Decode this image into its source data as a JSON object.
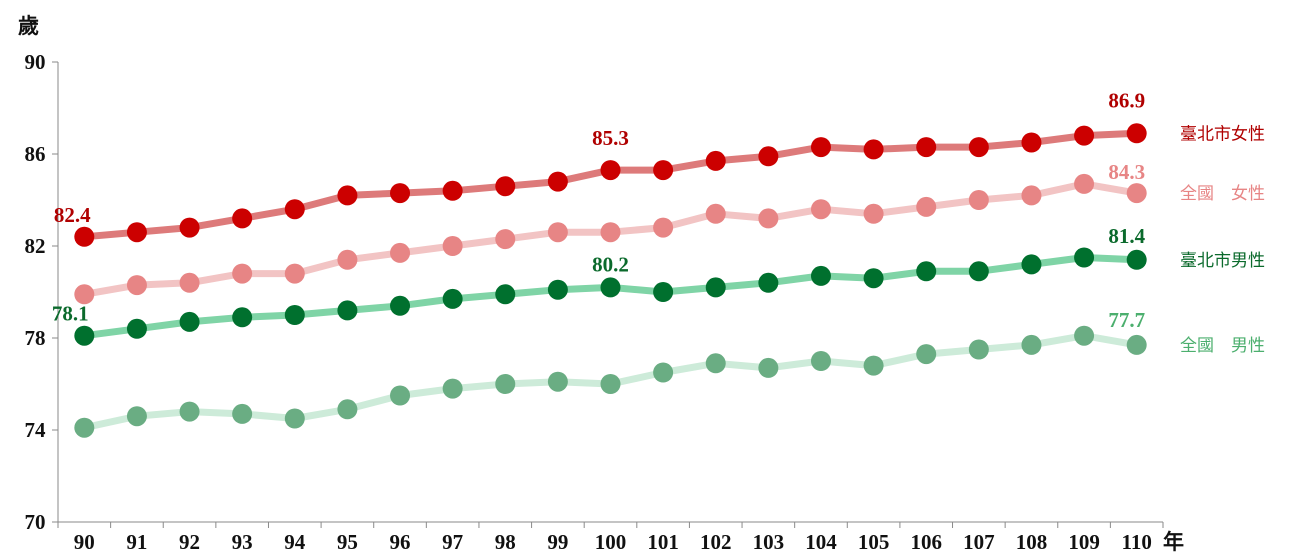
{
  "chart_data": {
    "type": "line",
    "ylabel": "歲",
    "xlabel": "年",
    "ylim": [
      70,
      90
    ],
    "yticks": [
      70,
      74,
      78,
      82,
      86,
      90
    ],
    "categories": [
      "90",
      "91",
      "92",
      "93",
      "94",
      "95",
      "96",
      "97",
      "98",
      "99",
      "100",
      "101",
      "102",
      "103",
      "104",
      "105",
      "106",
      "107",
      "108",
      "109",
      "110"
    ],
    "grid": false,
    "legend": "right, inline labels",
    "series": [
      {
        "name": "臺北市女性",
        "line_color": "#dd7a7a",
        "marker_color": "#cc0000",
        "label_color": "#b00000",
        "values": [
          82.4,
          82.6,
          82.8,
          83.2,
          83.6,
          84.2,
          84.3,
          84.4,
          84.6,
          84.8,
          85.3,
          85.3,
          85.7,
          85.9,
          86.3,
          86.2,
          86.3,
          86.3,
          86.5,
          86.8,
          86.9
        ],
        "labels": [
          {
            "index": 0,
            "text": "82.4"
          },
          {
            "index": 10,
            "text": "85.3"
          },
          {
            "index": 20,
            "text": "86.9"
          }
        ]
      },
      {
        "name": "全國　女性",
        "line_color": "#f2c4c4",
        "marker_color": "#e78585",
        "label_color": "#e78585",
        "values": [
          79.9,
          80.3,
          80.4,
          80.8,
          80.8,
          81.4,
          81.7,
          82.0,
          82.3,
          82.6,
          82.6,
          82.8,
          83.4,
          83.2,
          83.6,
          83.4,
          83.7,
          84.0,
          84.2,
          84.7,
          84.3
        ],
        "labels": [
          {
            "index": 20,
            "text": "84.3"
          }
        ]
      },
      {
        "name": "臺北市男性",
        "line_color": "#7fd4a6",
        "marker_color": "#00702e",
        "label_color": "#0b6a2c",
        "values": [
          78.1,
          78.4,
          78.7,
          78.9,
          79.0,
          79.2,
          79.4,
          79.7,
          79.9,
          80.1,
          80.2,
          80.0,
          80.2,
          80.4,
          80.7,
          80.6,
          80.9,
          80.9,
          81.2,
          81.5,
          81.4
        ],
        "labels": [
          {
            "index": 0,
            "text": "78.1"
          },
          {
            "index": 10,
            "text": "80.2"
          },
          {
            "index": 20,
            "text": "81.4"
          }
        ]
      },
      {
        "name": "全國　男性",
        "line_color": "#cdebd9",
        "marker_color": "#6aad83",
        "label_color": "#4caf6e",
        "values": [
          74.1,
          74.6,
          74.8,
          74.7,
          74.5,
          74.9,
          75.5,
          75.8,
          76.0,
          76.1,
          76.0,
          76.5,
          76.9,
          76.7,
          77.0,
          76.8,
          77.3,
          77.5,
          77.7,
          78.1,
          77.7
        ],
        "labels": [
          {
            "index": 20,
            "text": "77.7"
          }
        ]
      }
    ]
  }
}
